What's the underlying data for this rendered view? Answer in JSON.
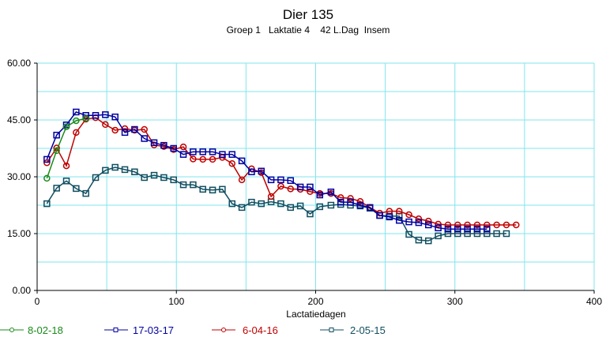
{
  "chart_data": {
    "type": "line",
    "title": "Dier 135",
    "subtitle": "Groep 1   Laktatie 4    42 L.Dag  Insem",
    "xlabel": "Lactatiedagen",
    "ylabel": "",
    "xlim": [
      0,
      400
    ],
    "ylim": [
      0,
      60
    ],
    "xticks": [
      0,
      100,
      200,
      300,
      400
    ],
    "xtick_labels": [
      "0",
      "100",
      "200",
      "300",
      "400"
    ],
    "yticks": [
      0,
      15,
      30,
      45,
      60
    ],
    "ytick_labels": [
      "0.00",
      "15.00",
      "30.00",
      "45.00",
      "60.00"
    ],
    "grid": true,
    "legend": "bottom",
    "series": [
      {
        "name": "8-02-18",
        "color": "#1a8a1a",
        "marker": "circle",
        "x": [
          7,
          14,
          21,
          28,
          35
        ],
        "y": [
          29.6,
          36.9,
          43.2,
          44.8,
          45.4
        ]
      },
      {
        "name": "17-03-17",
        "color": "#0000a0",
        "marker": "square",
        "x": [
          7,
          14,
          21,
          28,
          35,
          42,
          49,
          56,
          63,
          70,
          77,
          84,
          91,
          98,
          105,
          112,
          119,
          126,
          133,
          140,
          147,
          154,
          161,
          168,
          175,
          182,
          189,
          196,
          203,
          211,
          218,
          225,
          232,
          239,
          246,
          253,
          260,
          267,
          274,
          281,
          288,
          295,
          302,
          309,
          316,
          323
        ],
        "y": [
          34.6,
          41,
          43.7,
          47.1,
          46.2,
          46.2,
          46.4,
          45.8,
          41.7,
          42.5,
          40.1,
          39,
          38.3,
          37.5,
          35.9,
          36.6,
          36.6,
          36.6,
          35.9,
          35.9,
          34.2,
          31.3,
          31.5,
          29.2,
          29.2,
          29,
          27.3,
          27.3,
          25.2,
          26,
          23.3,
          23.3,
          22.5,
          21.9,
          19.8,
          19.4,
          18.5,
          18.1,
          17.9,
          17.3,
          16.5,
          16.2,
          16.2,
          16.2,
          16.2,
          16.2
        ]
      },
      {
        "name": "6-04-16",
        "color": "#c00000",
        "marker": "circle",
        "x": [
          7,
          14,
          21,
          28,
          35,
          42,
          49,
          56,
          63,
          70,
          77,
          84,
          91,
          98,
          105,
          112,
          119,
          126,
          133,
          140,
          147,
          154,
          161,
          168,
          175,
          182,
          189,
          196,
          203,
          211,
          218,
          225,
          232,
          239,
          246,
          253,
          260,
          267,
          274,
          281,
          288,
          295,
          302,
          309,
          316,
          323,
          330,
          337,
          344
        ],
        "y": [
          33.7,
          37.6,
          32.9,
          41.7,
          45.2,
          45.6,
          43.8,
          42.3,
          42.7,
          42.3,
          42.5,
          38.4,
          38,
          37.2,
          37.9,
          34.7,
          34.6,
          34.6,
          35.1,
          33.5,
          29.2,
          32.1,
          31.1,
          24.8,
          27.5,
          26.8,
          26.7,
          26.1,
          25.6,
          25.6,
          24.5,
          24.3,
          23.5,
          21.9,
          20.4,
          20.9,
          20.9,
          20,
          18.9,
          18.3,
          17.5,
          17.3,
          17.3,
          17.3,
          17.3,
          17.3,
          17.3,
          17.3,
          17.3
        ]
      },
      {
        "name": "2-05-15",
        "color": "#104e60",
        "marker": "square",
        "x": [
          7,
          14,
          21,
          28,
          35,
          42,
          49,
          56,
          63,
          70,
          77,
          84,
          91,
          98,
          105,
          112,
          119,
          126,
          133,
          140,
          147,
          154,
          161,
          168,
          175,
          182,
          189,
          196,
          203,
          211,
          218,
          225,
          232,
          239,
          246,
          253,
          260,
          267,
          274,
          281,
          288,
          295,
          302,
          309,
          316,
          323,
          330,
          337
        ],
        "y": [
          22.9,
          27,
          28.9,
          26.9,
          25.6,
          29.8,
          31.7,
          32.5,
          31.9,
          31.3,
          29.8,
          30.4,
          29.8,
          29.2,
          27.9,
          27.9,
          26.7,
          26.5,
          26.7,
          22.9,
          21.9,
          23.3,
          22.9,
          23.4,
          22.9,
          21.9,
          22.3,
          20.2,
          22.1,
          22.5,
          22.7,
          22.5,
          22.3,
          21.7,
          19.8,
          19.6,
          19.6,
          14.8,
          13.3,
          13.1,
          14.4,
          15,
          15,
          15,
          15,
          15,
          15,
          15
        ]
      }
    ]
  }
}
